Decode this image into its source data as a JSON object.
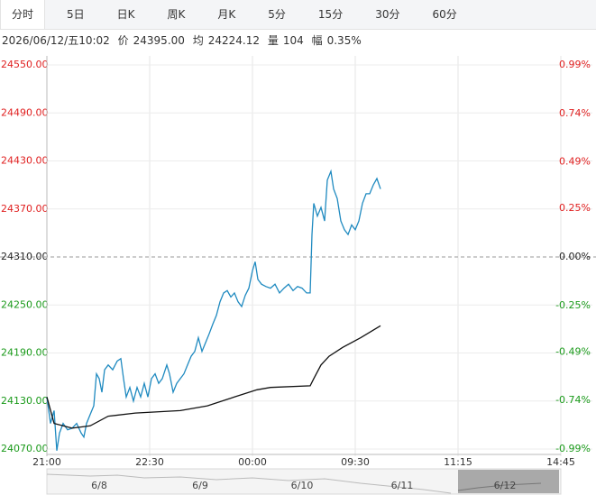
{
  "tabs": [
    "分时",
    "5日",
    "日K",
    "周K",
    "月K",
    "5分",
    "15分",
    "30分",
    "60分"
  ],
  "info": {
    "datetime": "2026/06/12/五10:02",
    "price_label": "价",
    "price": "24395.00",
    "avg_label": "均",
    "avg": "24224.12",
    "vol_label": "量",
    "vol": "104",
    "range_label": "幅",
    "range": "0.35%"
  },
  "navigator_dates": [
    "6/8",
    "6/9",
    "6/10",
    "6/11",
    "6/12"
  ],
  "chart_data": {
    "type": "line",
    "prev_close": 24310,
    "ylim": [
      24070,
      24550
    ],
    "yticks": [
      {
        "value": 24070,
        "label": "24070.00"
      },
      {
        "value": 24130,
        "label": "24130.00"
      },
      {
        "value": 24190,
        "label": "24190.00"
      },
      {
        "value": 24250,
        "label": "24250.00"
      },
      {
        "value": 24310,
        "label": "24310.00"
      },
      {
        "value": 24370,
        "label": "24370.00"
      },
      {
        "value": 24430,
        "label": "24430.00"
      },
      {
        "value": 24490,
        "label": "24490.00"
      },
      {
        "value": 24550,
        "label": "24550.00"
      }
    ],
    "y2lim": [
      -0.99,
      0.99
    ],
    "y2ticks": [
      {
        "value": -0.99,
        "label": "-0.99%"
      },
      {
        "value": -0.74,
        "label": "-0.74%"
      },
      {
        "value": -0.49,
        "label": "-0.49%"
      },
      {
        "value": -0.25,
        "label": "-0.25%"
      },
      {
        "value": 0,
        "label": "0.00%"
      },
      {
        "value": 0.25,
        "label": "0.25%"
      },
      {
        "value": 0.49,
        "label": "0.49%"
      },
      {
        "value": 0.74,
        "label": "0.74%"
      },
      {
        "value": 0.99,
        "label": "0.99%"
      }
    ],
    "xlim": [
      0,
      570
    ],
    "xticks": [
      {
        "value": 0,
        "label": "21:00"
      },
      {
        "value": 114,
        "label": "22:30"
      },
      {
        "value": 228,
        "label": "00:00"
      },
      {
        "value": 342,
        "label": "09:30"
      },
      {
        "value": 456,
        "label": "11:15"
      },
      {
        "value": 570,
        "label": "14:45"
      }
    ],
    "up_color": "#e02020",
    "down_color": "#1a9a1a",
    "flat_color": "#222222",
    "series": [
      {
        "name": "价",
        "color": "#1f8ac0",
        "x": [
          0,
          4,
          8,
          11,
          14,
          18,
          23,
          28,
          33,
          38,
          41,
          44,
          48,
          52,
          55,
          58,
          61,
          64,
          68,
          73,
          78,
          82,
          85,
          88,
          92,
          96,
          100,
          104,
          108,
          112,
          116,
          120,
          124,
          128,
          133,
          136,
          140,
          144,
          148,
          152,
          156,
          160,
          164,
          168,
          172,
          176,
          180,
          184,
          188,
          192,
          196,
          200,
          204,
          208,
          212,
          216,
          220,
          224,
          228,
          231,
          234,
          238,
          243,
          248,
          253,
          258,
          263,
          268,
          273,
          278,
          283,
          288,
          292,
          294,
          296,
          300,
          304,
          308,
          311,
          315,
          318,
          322,
          326,
          330,
          334,
          338,
          342,
          346,
          350,
          354,
          358,
          362,
          366,
          370
        ],
        "values": [
          24135,
          24102,
          24118,
          24068,
          24090,
          24102,
          24094,
          24096,
          24102,
          24090,
          24085,
          24102,
          24113,
          24124,
          24164,
          24158,
          24141,
          24169,
          24175,
          24169,
          24180,
          24183,
          24158,
          24135,
          24147,
          24130,
          24147,
          24135,
          24152,
          24135,
          24158,
          24164,
          24152,
          24158,
          24175,
          24164,
          24141,
          24152,
          24158,
          24164,
          24175,
          24186,
          24192,
          24209,
          24192,
          24203,
          24214,
          24226,
          24237,
          24254,
          24265,
          24268,
          24260,
          24265,
          24254,
          24248,
          24262,
          24271,
          24293,
          24304,
          24282,
          24276,
          24273,
          24271,
          24276,
          24265,
          24271,
          24276,
          24268,
          24273,
          24271,
          24265,
          24265,
          24338,
          24377,
          24361,
          24372,
          24355,
          24406,
          24417,
          24395,
          24383,
          24355,
          24344,
          24338,
          24350,
          24344,
          24355,
          24377,
          24389,
          24389,
          24400,
          24408,
          24395
        ]
      },
      {
        "name": "均",
        "color": "#111111",
        "x": [
          0,
          8,
          28,
          48,
          68,
          98,
          148,
          178,
          208,
          233,
          248,
          292,
          296,
          304,
          313,
          328,
          348,
          370
        ],
        "values": [
          24135,
          24102,
          24096,
          24099,
          24111,
          24115,
          24118,
          24124,
          24135,
          24144,
          24147,
          24149,
          24158,
          24175,
          24186,
          24197,
          24209,
          24224
        ]
      }
    ]
  }
}
